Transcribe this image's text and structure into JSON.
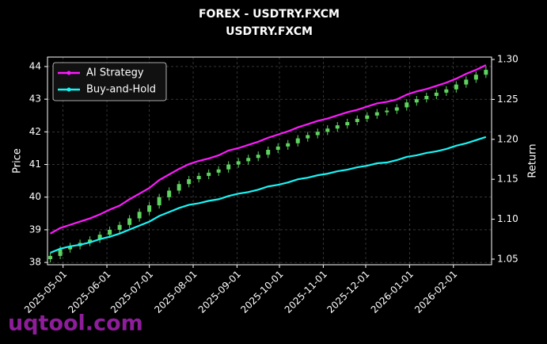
{
  "chart_data": {
    "type": "candlestick",
    "title": "FOREX - USDTRY.FXCM",
    "subtitle": "USDTRY.FXCM",
    "ylabel": "Price",
    "y2label": "Return",
    "watermark": "uqtool.com",
    "x": [
      "2025-04-22",
      "2025-04-29",
      "2025-05-06",
      "2025-05-13",
      "2025-05-20",
      "2025-05-27",
      "2025-06-03",
      "2025-06-10",
      "2025-06-17",
      "2025-06-24",
      "2025-07-01",
      "2025-07-08",
      "2025-07-15",
      "2025-07-22",
      "2025-07-29",
      "2025-08-05",
      "2025-08-12",
      "2025-08-19",
      "2025-08-26",
      "2025-09-02",
      "2025-09-09",
      "2025-09-16",
      "2025-09-23",
      "2025-09-30",
      "2025-10-07",
      "2025-10-14",
      "2025-10-21",
      "2025-10-28",
      "2025-11-04",
      "2025-11-11",
      "2025-11-18",
      "2025-11-25",
      "2025-12-02",
      "2025-12-09",
      "2025-12-16",
      "2025-12-23",
      "2025-12-30",
      "2026-01-06",
      "2026-01-13",
      "2026-01-20",
      "2026-01-27",
      "2026-02-03",
      "2026-02-10",
      "2026-02-17",
      "2026-02-24"
    ],
    "open": [
      38.1,
      38.2,
      38.4,
      38.5,
      38.6,
      38.7,
      38.85,
      39.0,
      39.15,
      39.35,
      39.55,
      39.75,
      40.0,
      40.2,
      40.4,
      40.55,
      40.65,
      40.75,
      40.85,
      41.0,
      41.1,
      41.2,
      41.3,
      41.45,
      41.55,
      41.65,
      41.8,
      41.9,
      42.0,
      42.1,
      42.2,
      42.3,
      42.4,
      42.5,
      42.6,
      42.65,
      42.75,
      42.9,
      43.0,
      43.1,
      43.2,
      43.3,
      43.45,
      43.6,
      43.75
    ],
    "high": [
      38.3,
      38.5,
      38.6,
      38.7,
      38.8,
      38.95,
      39.1,
      39.25,
      39.45,
      39.65,
      39.85,
      40.1,
      40.3,
      40.5,
      40.65,
      40.75,
      40.85,
      40.95,
      41.1,
      41.2,
      41.3,
      41.4,
      41.55,
      41.65,
      41.75,
      41.9,
      42.0,
      42.1,
      42.2,
      42.3,
      42.4,
      42.5,
      42.6,
      42.7,
      42.75,
      42.85,
      43.0,
      43.1,
      43.2,
      43.3,
      43.4,
      43.55,
      43.7,
      43.85,
      44.0
    ],
    "low": [
      38.0,
      38.1,
      38.3,
      38.4,
      38.5,
      38.6,
      38.75,
      38.9,
      39.05,
      39.25,
      39.45,
      39.65,
      39.9,
      40.1,
      40.3,
      40.45,
      40.55,
      40.65,
      40.75,
      40.9,
      41.0,
      41.1,
      41.2,
      41.35,
      41.45,
      41.55,
      41.7,
      41.8,
      41.9,
      42.0,
      42.1,
      42.2,
      42.3,
      42.4,
      42.5,
      42.55,
      42.65,
      42.8,
      42.9,
      43.0,
      43.1,
      43.2,
      43.35,
      43.5,
      43.65
    ],
    "close": [
      38.2,
      38.4,
      38.5,
      38.6,
      38.7,
      38.85,
      39.0,
      39.15,
      39.35,
      39.55,
      39.75,
      40.0,
      40.2,
      40.4,
      40.55,
      40.65,
      40.75,
      40.85,
      41.0,
      41.1,
      41.2,
      41.3,
      41.45,
      41.55,
      41.65,
      41.8,
      41.9,
      42.0,
      42.1,
      42.2,
      42.3,
      42.4,
      42.5,
      42.6,
      42.65,
      42.75,
      42.9,
      43.0,
      43.1,
      43.2,
      43.3,
      43.45,
      43.6,
      43.75,
      43.9
    ],
    "up_color": "#5fd35f",
    "down_color": "#ff4a3a",
    "series": [
      {
        "name": "AI Strategy",
        "color": "#ff1aff",
        "axis": "y2",
        "values": [
          1.082,
          1.089,
          1.093,
          1.097,
          1.101,
          1.106,
          1.112,
          1.117,
          1.125,
          1.132,
          1.139,
          1.149,
          1.156,
          1.163,
          1.169,
          1.173,
          1.176,
          1.18,
          1.186,
          1.189,
          1.193,
          1.197,
          1.202,
          1.206,
          1.21,
          1.215,
          1.219,
          1.223,
          1.226,
          1.23,
          1.234,
          1.237,
          1.241,
          1.245,
          1.247,
          1.25,
          1.256,
          1.26,
          1.263,
          1.267,
          1.271,
          1.276,
          1.282,
          1.287,
          1.293
        ]
      },
      {
        "name": "Buy-and-Hold",
        "color": "#19f5f5",
        "axis": "y2",
        "values": [
          1.058,
          1.063,
          1.066,
          1.068,
          1.071,
          1.075,
          1.078,
          1.082,
          1.087,
          1.092,
          1.097,
          1.104,
          1.109,
          1.114,
          1.118,
          1.12,
          1.123,
          1.125,
          1.129,
          1.132,
          1.134,
          1.137,
          1.141,
          1.143,
          1.146,
          1.15,
          1.152,
          1.155,
          1.157,
          1.16,
          1.162,
          1.165,
          1.167,
          1.17,
          1.171,
          1.174,
          1.178,
          1.18,
          1.183,
          1.185,
          1.188,
          1.192,
          1.195,
          1.199,
          1.203
        ]
      }
    ],
    "xlim": [
      "2025-04-20",
      "2026-02-28"
    ],
    "xticks": [
      "2025-05-01",
      "2025-06-01",
      "2025-07-01",
      "2025-08-01",
      "2025-09-01",
      "2025-10-01",
      "2025-11-01",
      "2025-12-01",
      "2026-01-01",
      "2026-02-01"
    ],
    "ylim": [
      37.93,
      44.29
    ],
    "yticks": [
      38,
      39,
      40,
      41,
      42,
      43,
      44
    ],
    "y2lim": [
      1.043,
      1.303
    ],
    "y2ticks": [
      1.05,
      {
        "value": 1.1,
        "label": "1.10"
      },
      1.15,
      {
        "value": 1.2,
        "label": "1.20"
      },
      1.25,
      {
        "value": 1.3,
        "label": "1.30"
      }
    ],
    "grid": true,
    "legend": "upper-left"
  }
}
